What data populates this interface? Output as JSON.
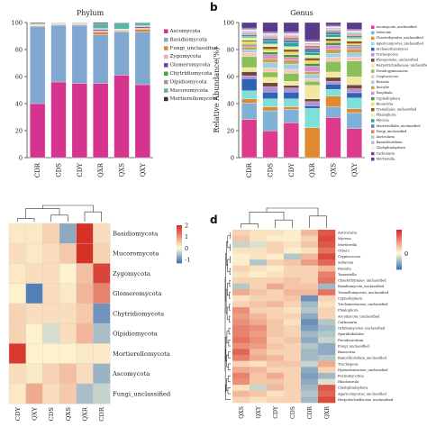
{
  "panels": {
    "b": "b",
    "d": "d"
  },
  "chart_data": [
    {
      "id": "phylum",
      "type": "bar",
      "stacked": true,
      "title": "Phylum",
      "ylabel": "",
      "xlabel": "",
      "ylim": [
        0,
        100
      ],
      "yticks": [
        0,
        20,
        40,
        60,
        80,
        100
      ],
      "categories": [
        "CDR",
        "CDS",
        "CDY",
        "QXR",
        "QXS",
        "QXY"
      ],
      "legend": "right",
      "series": [
        {
          "name": "Ascomycota",
          "color": "#d6338f",
          "values": [
            40,
            56,
            55,
            55,
            61,
            54
          ]
        },
        {
          "name": "Basidiomycota",
          "color": "#7fa7cf",
          "values": [
            57,
            42,
            43,
            36,
            32,
            39
          ]
        },
        {
          "name": "Fungi_unclassified",
          "color": "#d88a3a",
          "values": [
            0.6,
            0.5,
            0.5,
            2,
            0.7,
            2
          ]
        },
        {
          "name": "Zygomycota",
          "color": "#e7a9cc",
          "values": [
            0.4,
            0.3,
            0.3,
            1,
            0.5,
            1
          ]
        },
        {
          "name": "Glomeromycota",
          "color": "#6c3f98",
          "values": [
            0.3,
            0.2,
            0.2,
            0.8,
            0.3,
            0.8
          ]
        },
        {
          "name": "Chytridiomycota",
          "color": "#3daa47",
          "values": [
            0.3,
            0.2,
            0.2,
            0.5,
            0.4,
            0.5
          ]
        },
        {
          "name": "Olpidiomycota",
          "color": "#9b9b9b",
          "values": [
            0.3,
            0.2,
            0.2,
            0.5,
            0.3,
            0.5
          ]
        },
        {
          "name": "Mucoromycota",
          "color": "#5ab5a5",
          "values": [
            0.5,
            0.3,
            0.4,
            3.5,
            4.5,
            2
          ]
        },
        {
          "name": "Mortierellomycota",
          "color": "#333333",
          "values": [
            0.6,
            0.3,
            0.2,
            0.7,
            0.3,
            0.2
          ]
        }
      ]
    },
    {
      "id": "genus",
      "type": "bar",
      "stacked": true,
      "title": "Genus",
      "ylabel": "Relative Abundance(%)",
      "xlabel": "",
      "ylim": [
        0,
        100
      ],
      "yticks": [
        0,
        20,
        40,
        60,
        80,
        100
      ],
      "categories": [
        "CDR",
        "CDS",
        "CDY",
        "QXR",
        "QXS",
        "QXY"
      ],
      "legend": "right",
      "series": [
        {
          "name": "Ascomycota_unclassified",
          "color": "#de3a8c",
          "values": [
            28,
            20,
            26,
            0,
            30,
            22
          ]
        },
        {
          "name": "Sebacina",
          "color": "#7fb1d6",
          "values": [
            12,
            15,
            10,
            0,
            8,
            12
          ]
        },
        {
          "name": "Chaetothyriales_unclassified",
          "color": "#e08a30",
          "values": [
            3,
            3,
            2,
            22,
            8,
            3
          ]
        },
        {
          "name": "Agaricomycetes_unclassified",
          "color": "#7ee0d8",
          "values": [
            6,
            6,
            6,
            14,
            5,
            8
          ]
        },
        {
          "name": "Archaeorhizomyces",
          "color": "#2f64b5",
          "values": [
            9,
            5,
            5,
            2,
            4,
            4
          ]
        },
        {
          "name": "Trichosporon",
          "color": "#b68ed6",
          "values": [
            2,
            4,
            3,
            3,
            2,
            3
          ]
        },
        {
          "name": "Pleosporales_unclassified",
          "color": "#6d4a3a",
          "values": [
            3,
            3,
            2,
            2,
            3,
            3
          ]
        },
        {
          "name": "Herpotrichiellaceae_unclassified",
          "color": "#f2e6a0",
          "values": [
            3,
            4,
            3,
            10,
            4,
            6
          ]
        },
        {
          "name": "Pseudogymnoascus",
          "color": "#88c057",
          "values": [
            8,
            4,
            6,
            3,
            8,
            12
          ]
        },
        {
          "name": "Cryptococcus",
          "color": "#f7c8b8",
          "values": [
            3,
            3,
            3,
            2,
            3,
            3
          ]
        },
        {
          "name": "Russula",
          "color": "#9ad1e8",
          "values": [
            2,
            4,
            4,
            3,
            3,
            3
          ]
        },
        {
          "name": "Inocybe",
          "color": "#c9a24a",
          "values": [
            2,
            3,
            3,
            2,
            3,
            3
          ]
        },
        {
          "name": "Exophiala",
          "color": "#d68fd0",
          "values": [
            1,
            3,
            2,
            4,
            3,
            2
          ]
        },
        {
          "name": "Cyphellophora",
          "color": "#4f8f4a",
          "values": [
            1,
            2,
            2,
            2,
            2,
            1
          ]
        },
        {
          "name": "Bionectria",
          "color": "#e5e15a",
          "values": [
            2,
            2,
            2,
            2,
            1,
            1
          ]
        },
        {
          "name": "Tremellales_unclassified",
          "color": "#8c5a2b",
          "values": [
            1,
            2,
            2,
            2,
            2,
            2
          ]
        },
        {
          "name": "Phialophora",
          "color": "#e2f3a9",
          "values": [
            2,
            2,
            2,
            2,
            1,
            2
          ]
        },
        {
          "name": "Mycena",
          "color": "#2aa59a",
          "values": [
            1,
            2,
            3,
            2,
            2,
            1
          ]
        },
        {
          "name": "Mortierellales_unclassified",
          "color": "#5b7fb8",
          "values": [
            1,
            2,
            2,
            3,
            2,
            1
          ]
        },
        {
          "name": "Fungi_unclassified",
          "color": "#e07878",
          "values": [
            1,
            1,
            2,
            2,
            1,
            1
          ]
        },
        {
          "name": "Auricularia",
          "color": "#a8d5a0",
          "values": [
            1,
            1,
            1,
            1,
            1,
            1
          ]
        },
        {
          "name": "Ramichloridium",
          "color": "#c7b3e3",
          "values": [
            1,
            1,
            1,
            1,
            1,
            1
          ]
        },
        {
          "name": "Cladophialophora",
          "color": "#f0f0f0",
          "values": [
            1,
            1,
            1,
            1,
            1,
            1
          ]
        },
        {
          "name": "Carbonaria",
          "color": "#8a3fa0",
          "values": [
            1,
            1,
            1,
            1,
            1,
            1
          ]
        },
        {
          "name": "Mortierella",
          "color": "#5a3a8a",
          "values": [
            4,
            7,
            7,
            13,
            2,
            5
          ]
        }
      ]
    },
    {
      "id": "heatmap-phylum",
      "type": "heatmap",
      "columns": [
        "CDY",
        "QXY",
        "CDS",
        "QXS",
        "QXR",
        "CDR"
      ],
      "rows": [
        "Basidiomycota",
        "Mucoromycota",
        "Zygomycota",
        "Glomeromycota",
        "Chytridiomycota",
        "Olpidiomycota",
        "Mortierellomycota",
        "Ascomycota",
        "Fungi_unclassified"
      ],
      "values": [
        [
          0.2,
          0.2,
          0.4,
          -0.8,
          2.0,
          0.3
        ],
        [
          0.3,
          0.2,
          0.3,
          0.5,
          2.0,
          0.4
        ],
        [
          0.2,
          0.3,
          0.3,
          0.1,
          0.6,
          1.8
        ],
        [
          0.1,
          -1.2,
          0.3,
          0.2,
          0.7,
          1.2
        ],
        [
          0.4,
          0.3,
          0.3,
          0.3,
          0.5,
          -1.0
        ],
        [
          0.4,
          0.1,
          -0.3,
          0.3,
          0.7,
          -0.6
        ],
        [
          1.9,
          0.1,
          0.1,
          0.1,
          0.2,
          0.2
        ],
        [
          0.3,
          0.2,
          0.4,
          0.6,
          0.3,
          -0.7
        ],
        [
          0.2,
          0.8,
          0.3,
          0.5,
          -0.6,
          -0.4
        ]
      ],
      "scale": {
        "min": -1.3,
        "max": 2,
        "ticks": [
          2,
          1,
          0,
          -1
        ]
      },
      "legend": "right"
    },
    {
      "id": "heatmap-genus",
      "type": "heatmap",
      "columns": [
        "QXS",
        "QXY",
        "CDY",
        "CDS",
        "CDR",
        "QXR"
      ],
      "rows": [
        "Auricularia",
        "Mycena",
        "Mortierella",
        "Others",
        "Cryptococcus",
        "Sebacina",
        "Russula",
        "Tomentella",
        "Chaetothyriales_unclassified",
        "Basidiomycota_unclassified",
        "Tremellomycetes_unclassified",
        "Cyphellophora",
        "Trichomeriaceae_unclassified",
        "Phialophora",
        "Ascomycota_unclassified",
        "Carbonaria",
        "Orbiliomycetes_unclassified",
        "Sporidiobolales",
        "Pseudeurotium",
        "Fungi_unclassified",
        "Bionectria",
        "Ramichloridium_unclassified",
        "Trechispora",
        "Hydnodontaceae_unclassified",
        "Pezizomycotina",
        "Rhodotorula",
        "Cladophialophora",
        "Agaricomycetes_unclassified",
        "Herpotrichiellaceae_unclassified"
      ],
      "values": [
        [
          0.3,
          0.2,
          0.2,
          0.1,
          0.5,
          1.2
        ],
        [
          0.4,
          0.2,
          0.1,
          0.1,
          0.3,
          1.3
        ],
        [
          -0.3,
          -0.2,
          0.3,
          0.2,
          0.4,
          1.2
        ],
        [
          0.2,
          0.2,
          0.3,
          0.1,
          0.2,
          1.0
        ],
        [
          0.1,
          0.2,
          0.1,
          -0.4,
          0.5,
          1.3
        ],
        [
          0.1,
          -0.4,
          0.3,
          0.4,
          0.7,
          1.1
        ],
        [
          0.3,
          0.2,
          0.1,
          0.3,
          0.3,
          0.5
        ],
        [
          0.2,
          0.1,
          0.2,
          0.3,
          0.3,
          0.9
        ],
        [
          0.3,
          0.3,
          0.3,
          0.4,
          0.3,
          1.0
        ],
        [
          -0.4,
          0.3,
          0.6,
          0.4,
          0.4,
          -0.5
        ],
        [
          0.6,
          0.4,
          0.3,
          0.5,
          0.5,
          1.0
        ],
        [
          0.2,
          0.3,
          0.3,
          0.4,
          -0.8,
          0.3
        ],
        [
          0.3,
          0.4,
          0.5,
          0.3,
          -0.5,
          0.2
        ],
        [
          0.8,
          0.3,
          0.3,
          0.2,
          -0.4,
          0.3
        ],
        [
          0.7,
          0.5,
          0.3,
          0.3,
          -0.6,
          0.3
        ],
        [
          0.8,
          0.6,
          0.4,
          0.2,
          -0.8,
          -0.4
        ],
        [
          0.9,
          0.8,
          0.4,
          0.3,
          -0.7,
          -0.5
        ],
        [
          0.9,
          0.7,
          0.4,
          0.3,
          -0.5,
          -0.4
        ],
        [
          1.0,
          0.8,
          0.3,
          0.4,
          -0.6,
          -0.3
        ],
        [
          0.8,
          0.7,
          0.4,
          0.3,
          -0.4,
          -0.6
        ],
        [
          1.1,
          0.5,
          0.3,
          0.3,
          -0.5,
          -0.6
        ],
        [
          0.9,
          0.6,
          0.5,
          0.3,
          -0.5,
          -0.4
        ],
        [
          0.3,
          0.2,
          0.4,
          0.4,
          -0.3,
          0.6
        ],
        [
          0.6,
          0.5,
          0.3,
          0.3,
          -0.6,
          0.3
        ],
        [
          0.9,
          0.4,
          0.6,
          0.3,
          -0.7,
          -0.5
        ],
        [
          0.8,
          0.4,
          0.4,
          0.3,
          -0.6,
          -0.2
        ],
        [
          0.2,
          -0.3,
          0.5,
          0.3,
          -0.5,
          1.2
        ],
        [
          0.5,
          0.4,
          0.2,
          0.3,
          -0.4,
          1.1
        ],
        [
          0.3,
          0.2,
          0.3,
          0.3,
          -0.5,
          1.3
        ]
      ],
      "scale": {
        "min": -1,
        "max": 1.5,
        "ticks": [
          "0",
          "-"
        ]
      },
      "legend": "right"
    }
  ]
}
